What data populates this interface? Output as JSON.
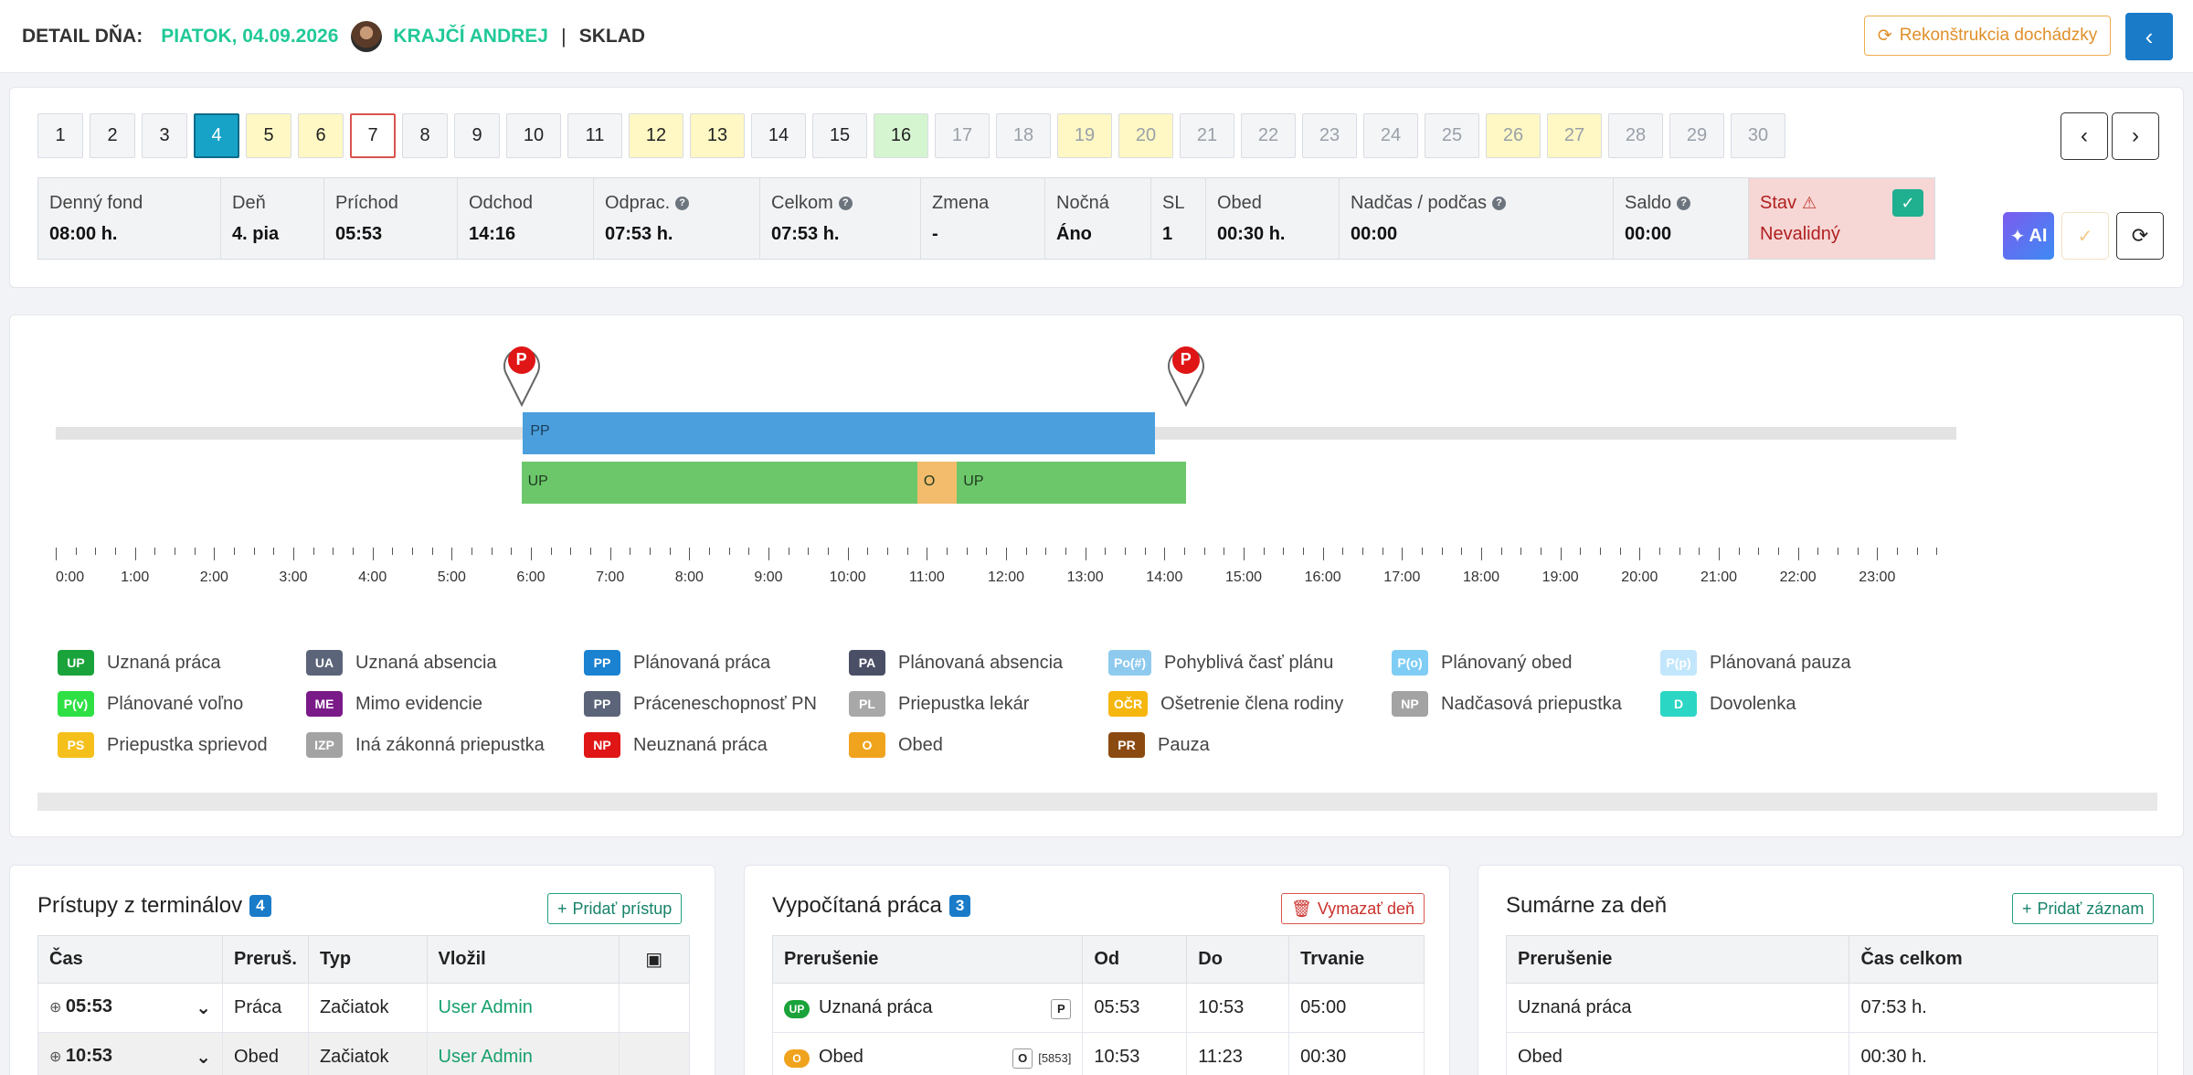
{
  "header": {
    "label": "DETAIL DŇA:",
    "date": "PIATOK, 04.09.2026",
    "employee": "KRAJČÍ ANDREJ",
    "separator": "|",
    "department": "SKLAD",
    "rekon_button": "Rekonštrukcia dochádzky",
    "back_icon": "chevron-left-icon"
  },
  "days": [
    {
      "n": "1",
      "style": ""
    },
    {
      "n": "2",
      "style": ""
    },
    {
      "n": "3",
      "style": ""
    },
    {
      "n": "4",
      "style": "active"
    },
    {
      "n": "5",
      "style": "yellow"
    },
    {
      "n": "6",
      "style": "yellow"
    },
    {
      "n": "7",
      "style": "red"
    },
    {
      "n": "8",
      "style": ""
    },
    {
      "n": "9",
      "style": ""
    },
    {
      "n": "10",
      "style": ""
    },
    {
      "n": "11",
      "style": ""
    },
    {
      "n": "12",
      "style": "yellow"
    },
    {
      "n": "13",
      "style": "yellow"
    },
    {
      "n": "14",
      "style": ""
    },
    {
      "n": "15",
      "style": ""
    },
    {
      "n": "16",
      "style": "green"
    },
    {
      "n": "17",
      "style": "muted"
    },
    {
      "n": "18",
      "style": "muted"
    },
    {
      "n": "19",
      "style": "yellow muted"
    },
    {
      "n": "20",
      "style": "yellow muted"
    },
    {
      "n": "21",
      "style": "muted"
    },
    {
      "n": "22",
      "style": "muted"
    },
    {
      "n": "23",
      "style": "muted"
    },
    {
      "n": "24",
      "style": "muted"
    },
    {
      "n": "25",
      "style": "muted"
    },
    {
      "n": "26",
      "style": "yellow muted"
    },
    {
      "n": "27",
      "style": "yellow muted"
    },
    {
      "n": "28",
      "style": "muted"
    },
    {
      "n": "29",
      "style": "muted"
    },
    {
      "n": "30",
      "style": "muted"
    }
  ],
  "nav": {
    "prev": "‹",
    "next": "›"
  },
  "info": [
    {
      "label": "Denný fond",
      "value": "08:00 h.",
      "help": false
    },
    {
      "label": "Deň",
      "value": "4. pia",
      "help": false
    },
    {
      "label": "Príchod",
      "value": "05:53",
      "help": false
    },
    {
      "label": "Odchod",
      "value": "14:16",
      "help": false
    },
    {
      "label": "Odprac.",
      "value": "07:53 h.",
      "help": true
    },
    {
      "label": "Celkom",
      "value": "07:53 h.",
      "help": true
    },
    {
      "label": "Zmena",
      "value": "-",
      "help": false
    },
    {
      "label": "Nočná",
      "value": "Áno",
      "help": false
    },
    {
      "label": "SL",
      "value": "1",
      "help": false
    },
    {
      "label": "Obed",
      "value": "00:30 h.",
      "help": false
    },
    {
      "label": "Nadčas / podčas",
      "value": "00:00",
      "help": true
    },
    {
      "label": "Saldo",
      "value": "00:00",
      "help": true
    }
  ],
  "status": {
    "label": "Stav",
    "value": "Nevalidný"
  },
  "side_buttons": {
    "ai": "AI"
  },
  "timeline": {
    "start_hour": 0,
    "end_hour": 24,
    "pins": [
      {
        "letter": "P",
        "time": 5.88
      },
      {
        "letter": "P",
        "time": 14.27
      }
    ],
    "planned": [
      {
        "label": "PP",
        "from": 5.9,
        "to": 13.88,
        "color": "#4a9fdc"
      }
    ],
    "segments": [
      {
        "label": "UP",
        "from": 5.88,
        "to": 10.88,
        "color": "#6cc76a"
      },
      {
        "label": "O",
        "from": 10.88,
        "to": 11.38,
        "color": "#f3bc6d"
      },
      {
        "label": "UP",
        "from": 11.38,
        "to": 14.27,
        "color": "#6cc76a"
      }
    ],
    "hour_labels": [
      "0:00",
      "1:00",
      "2:00",
      "3:00",
      "4:00",
      "5:00",
      "6:00",
      "7:00",
      "8:00",
      "9:00",
      "10:00",
      "11:00",
      "12:00",
      "13:00",
      "14:00",
      "15:00",
      "16:00",
      "17:00",
      "18:00",
      "19:00",
      "20:00",
      "21:00",
      "22:00",
      "23:00"
    ]
  },
  "legend": [
    {
      "code": "UP",
      "text": "Uznaná práca",
      "color": "#1aa33a"
    },
    {
      "code": "UA",
      "text": "Uznaná absencia",
      "color": "#5b6478"
    },
    {
      "code": "PP",
      "text": "Plánovaná práca",
      "color": "#1a82d0"
    },
    {
      "code": "PA",
      "text": "Plánovaná absencia",
      "color": "#4b4f66"
    },
    {
      "code": "Po(#)",
      "text": "Pohyblivá časť plánu",
      "color": "#8ec9ee"
    },
    {
      "code": "P(o)",
      "text": "Plánovaný obed",
      "color": "#7fcdf4"
    },
    {
      "code": "P(p)",
      "text": "Plánovaná pauza",
      "color": "#c2e6fb"
    },
    {
      "code": "P(v)",
      "text": "Plánované voľno",
      "color": "#2ee043"
    },
    {
      "code": "ME",
      "text": "Mimo evidencie",
      "color": "#7a1a88"
    },
    {
      "code": "PP",
      "text": "Práceneschopnosť PN",
      "color": "#5b6478"
    },
    {
      "code": "PL",
      "text": "Priepustka lekár",
      "color": "#a8a8a8"
    },
    {
      "code": "OČR",
      "text": "Ošetrenie člena rodiny",
      "color": "#f5b70e"
    },
    {
      "code": "NP",
      "text": "Nadčasová priepustka",
      "color": "#a3a3a3"
    },
    {
      "code": "D",
      "text": "Dovolenka",
      "color": "#2bd6c5"
    },
    {
      "code": "PS",
      "text": "Priepustka sprievod",
      "color": "#f5c01c"
    },
    {
      "code": "IZP",
      "text": "Iná zákonná priepustka",
      "color": "#a3a3a3"
    },
    {
      "code": "NP",
      "text": "Neuznaná práca",
      "color": "#e01515"
    },
    {
      "code": "O",
      "text": "Obed",
      "color": "#f0a31c"
    },
    {
      "code": "PR",
      "text": "Pauza",
      "color": "#8a4a10"
    }
  ],
  "terminals": {
    "title": "Prístupy z terminálov",
    "count": "4",
    "add_button": "Pridať prístup",
    "columns": [
      "Čas",
      "Preruš.",
      "Typ",
      "Vložil"
    ],
    "rows": [
      {
        "time": "05:53",
        "prerus": "Práca",
        "typ": "Začiatok",
        "vlozil": "User Admin"
      },
      {
        "time": "10:53",
        "prerus": "Obed",
        "typ": "Začiatok",
        "vlozil": "User Admin"
      }
    ]
  },
  "computed": {
    "title": "Vypočítaná práca",
    "count": "3",
    "delete_button": "Vymazať deň",
    "columns": [
      "Prerušenie",
      "Od",
      "Do",
      "Trvanie"
    ],
    "rows": [
      {
        "badge": "UP",
        "badge_color": "#1aa33a",
        "name": "Uznaná práca",
        "flag": "P",
        "ref": "",
        "od": "05:53",
        "do": "10:53",
        "trvanie": "05:00"
      },
      {
        "badge": "O",
        "badge_color": "#f0a31c",
        "name": "Obed",
        "flag": "O",
        "ref": "[5853]",
        "od": "10:53",
        "do": "11:23",
        "trvanie": "00:30"
      }
    ]
  },
  "summary": {
    "title": "Sumárne za deň",
    "add_button": "Pridať záznam",
    "columns": [
      "Prerušenie",
      "Čas celkom"
    ],
    "rows": [
      {
        "name": "Uznaná práca",
        "total": "07:53 h."
      },
      {
        "name": "Obed",
        "total": "00:30 h."
      }
    ]
  }
}
